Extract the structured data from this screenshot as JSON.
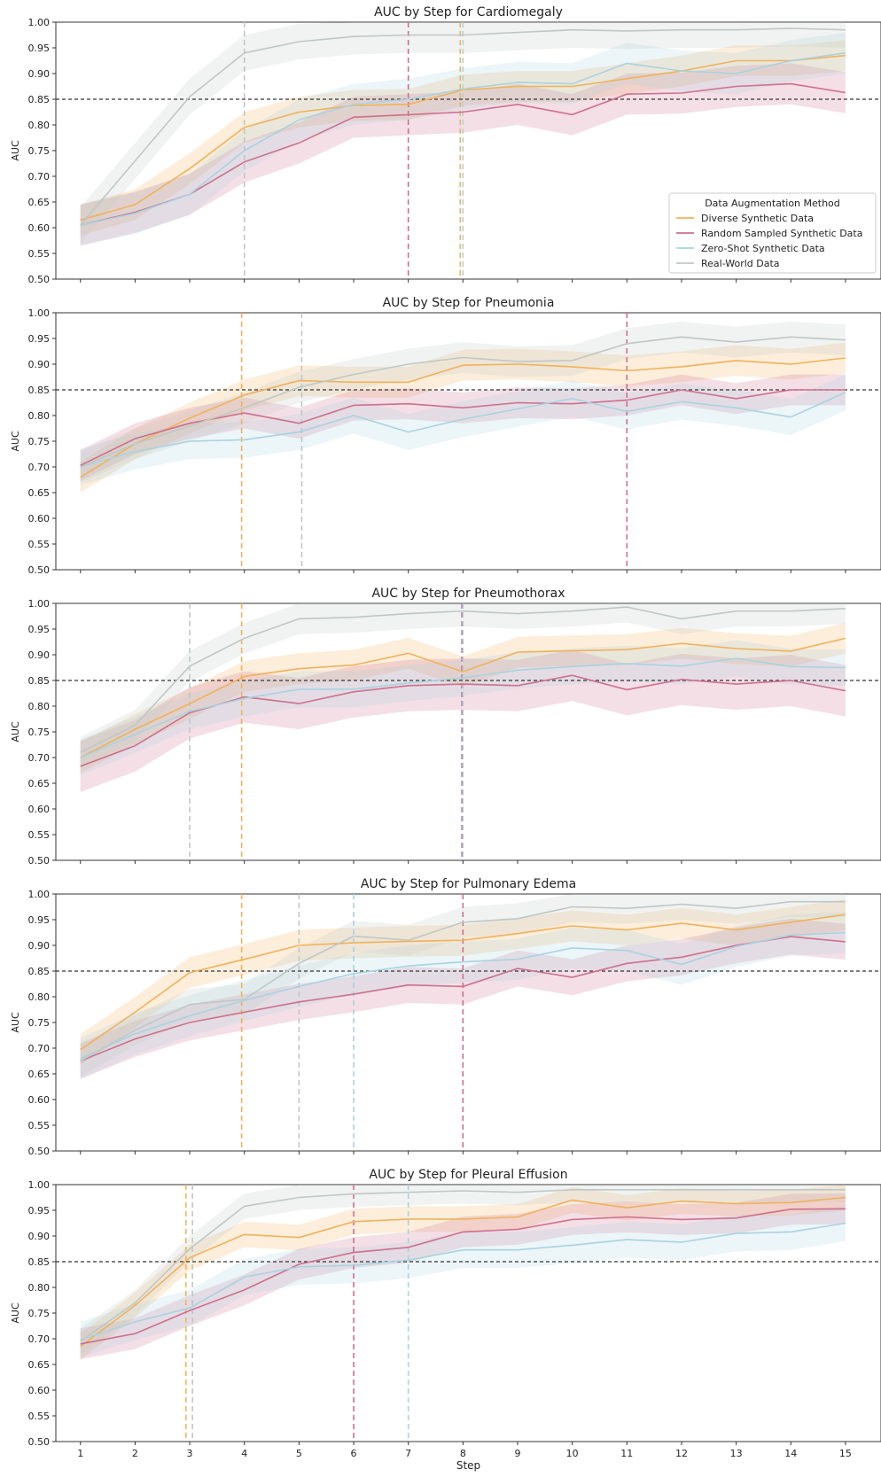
{
  "colors": {
    "diverse": "#f0b25a",
    "random": "#cf6f8c",
    "zeroshot": "#a9d3e0",
    "real": "#bfc8c6",
    "baseline": "#333333"
  },
  "legend": {
    "title": "Data Augmentation Method",
    "entries": [
      "Diverse Synthetic Data",
      "Random Sampled Synthetic Data",
      "Zero-Shot Synthetic Data",
      "Real-World Data"
    ]
  },
  "chart_data": [
    {
      "type": "line",
      "title": "AUC by Step for Cardiomegaly",
      "xlabel": "",
      "ylabel": "AUC",
      "x": [
        1,
        2,
        3,
        4,
        5,
        6,
        7,
        8,
        9,
        10,
        11,
        12,
        13,
        14,
        15
      ],
      "ylim": [
        0.5,
        1.0
      ],
      "yticks": [
        "0.50",
        "0.55",
        "0.60",
        "0.65",
        "0.70",
        "0.75",
        "0.80",
        "0.85",
        "0.90",
        "0.95",
        "1.00"
      ],
      "baseline": 0.85,
      "legend": "lower-right",
      "series": [
        {
          "name": "Diverse Synthetic Data",
          "key": "diverse",
          "values": [
            0.615,
            0.645,
            0.715,
            0.795,
            0.825,
            0.838,
            0.84,
            0.868,
            0.875,
            0.875,
            0.89,
            0.905,
            0.925,
            0.925,
            0.935
          ],
          "band": 0.03,
          "threshold": 7.95
        },
        {
          "name": "Random Sampled Synthetic Data",
          "key": "random",
          "values": [
            0.605,
            0.63,
            0.665,
            0.728,
            0.765,
            0.815,
            0.82,
            0.825,
            0.84,
            0.82,
            0.86,
            0.862,
            0.875,
            0.88,
            0.863
          ],
          "band": 0.04,
          "threshold": 7.0
        },
        {
          "name": "Zero-Shot Synthetic Data",
          "key": "zeroshot",
          "values": [
            0.605,
            0.628,
            0.665,
            0.75,
            0.81,
            0.84,
            0.85,
            0.87,
            0.883,
            0.88,
            0.92,
            0.905,
            0.9,
            0.925,
            0.94
          ],
          "band": 0.04,
          "threshold": 8.0
        },
        {
          "name": "Real-World Data",
          "key": "real",
          "values": [
            0.605,
            0.73,
            0.855,
            0.94,
            0.962,
            0.972,
            0.975,
            0.975,
            0.98,
            0.985,
            0.983,
            0.985,
            0.985,
            0.988,
            0.985
          ],
          "band": 0.035,
          "threshold": 4.0
        }
      ]
    },
    {
      "type": "line",
      "title": "AUC by Step for Pneumonia",
      "xlabel": "",
      "ylabel": "AUC",
      "x": [
        1,
        2,
        3,
        4,
        5,
        6,
        7,
        8,
        9,
        10,
        11,
        12,
        13,
        14,
        15
      ],
      "ylim": [
        0.5,
        1.0
      ],
      "yticks": [
        "0.50",
        "0.55",
        "0.60",
        "0.65",
        "0.70",
        "0.75",
        "0.80",
        "0.85",
        "0.90",
        "0.95",
        "1.00"
      ],
      "baseline": 0.85,
      "series": [
        {
          "name": "Diverse Synthetic Data",
          "key": "diverse",
          "values": [
            0.68,
            0.745,
            0.795,
            0.84,
            0.868,
            0.865,
            0.865,
            0.898,
            0.9,
            0.895,
            0.887,
            0.895,
            0.907,
            0.9,
            0.912
          ],
          "band": 0.03,
          "threshold": 3.95
        },
        {
          "name": "Random Sampled Synthetic Data",
          "key": "random",
          "values": [
            0.703,
            0.755,
            0.785,
            0.805,
            0.785,
            0.82,
            0.823,
            0.815,
            0.825,
            0.823,
            0.83,
            0.85,
            0.833,
            0.85,
            0.85
          ],
          "band": 0.03,
          "threshold": 11.0
        },
        {
          "name": "Zero-Shot Synthetic Data",
          "key": "zeroshot",
          "values": [
            0.7,
            0.73,
            0.75,
            0.753,
            0.768,
            0.8,
            0.768,
            0.793,
            0.813,
            0.833,
            0.808,
            0.827,
            0.815,
            0.797,
            0.845
          ],
          "band": 0.035,
          "threshold": null
        },
        {
          "name": "Real-World Data",
          "key": "real",
          "values": [
            0.7,
            0.745,
            0.78,
            0.815,
            0.855,
            0.88,
            0.9,
            0.913,
            0.905,
            0.907,
            0.94,
            0.953,
            0.943,
            0.953,
            0.947
          ],
          "band": 0.03,
          "threshold": 5.05
        }
      ]
    },
    {
      "type": "line",
      "title": "AUC by Step for Pneumothorax",
      "xlabel": "",
      "ylabel": "AUC",
      "x": [
        1,
        2,
        3,
        4,
        5,
        6,
        7,
        8,
        9,
        10,
        11,
        12,
        13,
        14,
        15
      ],
      "ylim": [
        0.5,
        1.0
      ],
      "yticks": [
        "0.50",
        "0.55",
        "0.60",
        "0.65",
        "0.70",
        "0.75",
        "0.80",
        "0.85",
        "0.90",
        "0.95",
        "1.00"
      ],
      "baseline": 0.85,
      "series": [
        {
          "name": "Diverse Synthetic Data",
          "key": "diverse",
          "values": [
            0.7,
            0.755,
            0.805,
            0.858,
            0.873,
            0.88,
            0.903,
            0.867,
            0.905,
            0.908,
            0.91,
            0.922,
            0.912,
            0.907,
            0.932
          ],
          "band": 0.03,
          "threshold": 3.95
        },
        {
          "name": "Random Sampled Synthetic Data",
          "key": "random",
          "values": [
            0.683,
            0.723,
            0.787,
            0.818,
            0.805,
            0.828,
            0.84,
            0.843,
            0.84,
            0.86,
            0.832,
            0.852,
            0.843,
            0.85,
            0.83
          ],
          "band": 0.05,
          "threshold": 7.98
        },
        {
          "name": "Zero-Shot Synthetic Data",
          "key": "zeroshot",
          "values": [
            0.7,
            0.745,
            0.79,
            0.815,
            0.833,
            0.833,
            0.845,
            0.855,
            0.87,
            0.877,
            0.883,
            0.878,
            0.893,
            0.877,
            0.875
          ],
          "band": 0.035,
          "threshold": 8.0
        },
        {
          "name": "Real-World Data",
          "key": "real",
          "values": [
            0.71,
            0.763,
            0.878,
            0.932,
            0.97,
            0.973,
            0.98,
            0.985,
            0.98,
            0.985,
            0.993,
            0.97,
            0.985,
            0.985,
            0.99
          ],
          "band": 0.03,
          "threshold": 3.0
        }
      ]
    },
    {
      "type": "line",
      "title": "AUC by Step for Pulmonary Edema",
      "xlabel": "",
      "ylabel": "AUC",
      "x": [
        1,
        2,
        3,
        4,
        5,
        6,
        7,
        8,
        9,
        10,
        11,
        12,
        13,
        14,
        15
      ],
      "ylim": [
        0.5,
        1.0
      ],
      "yticks": [
        "0.50",
        "0.55",
        "0.60",
        "0.65",
        "0.70",
        "0.75",
        "0.80",
        "0.85",
        "0.90",
        "0.95",
        "1.00"
      ],
      "baseline": 0.85,
      "series": [
        {
          "name": "Diverse Synthetic Data",
          "key": "diverse",
          "values": [
            0.697,
            0.77,
            0.847,
            0.873,
            0.9,
            0.905,
            0.908,
            0.91,
            0.923,
            0.938,
            0.93,
            0.943,
            0.93,
            0.945,
            0.96
          ],
          "band": 0.03,
          "threshold": 3.95
        },
        {
          "name": "Random Sampled Synthetic Data",
          "key": "random",
          "values": [
            0.675,
            0.718,
            0.75,
            0.77,
            0.79,
            0.805,
            0.823,
            0.82,
            0.855,
            0.838,
            0.865,
            0.877,
            0.9,
            0.917,
            0.907
          ],
          "band": 0.035,
          "threshold": 8.0
        },
        {
          "name": "Zero-Shot Synthetic Data",
          "key": "zeroshot",
          "values": [
            0.68,
            0.728,
            0.763,
            0.793,
            0.82,
            0.845,
            0.86,
            0.868,
            0.873,
            0.895,
            0.89,
            0.863,
            0.898,
            0.92,
            0.925
          ],
          "band": 0.04,
          "threshold": 6.0
        },
        {
          "name": "Real-World Data",
          "key": "real",
          "values": [
            0.675,
            0.735,
            0.785,
            0.795,
            0.865,
            0.918,
            0.91,
            0.945,
            0.952,
            0.975,
            0.972,
            0.98,
            0.972,
            0.985,
            0.985
          ],
          "band": 0.03,
          "threshold": 5.0
        }
      ]
    },
    {
      "type": "line",
      "title": "AUC by Step for Pleural Effusion",
      "xlabel": "Step",
      "ylabel": "AUC",
      "x": [
        1,
        2,
        3,
        4,
        5,
        6,
        7,
        8,
        9,
        10,
        11,
        12,
        13,
        14,
        15
      ],
      "xticks": [
        "1",
        "2",
        "3",
        "4",
        "5",
        "6",
        "7",
        "8",
        "9",
        "10",
        "11",
        "12",
        "13",
        "14",
        "15"
      ],
      "ylim": [
        0.5,
        1.0
      ],
      "yticks": [
        "0.50",
        "0.55",
        "0.60",
        "0.65",
        "0.70",
        "0.75",
        "0.80",
        "0.85",
        "0.90",
        "0.95",
        "1.00"
      ],
      "baseline": 0.85,
      "series": [
        {
          "name": "Diverse Synthetic Data",
          "key": "diverse",
          "values": [
            0.685,
            0.765,
            0.858,
            0.903,
            0.897,
            0.928,
            0.933,
            0.933,
            0.937,
            0.97,
            0.955,
            0.968,
            0.963,
            0.965,
            0.975
          ],
          "band": 0.025,
          "threshold": 2.93
        },
        {
          "name": "Random Sampled Synthetic Data",
          "key": "random",
          "values": [
            0.69,
            0.71,
            0.755,
            0.795,
            0.845,
            0.868,
            0.878,
            0.908,
            0.913,
            0.932,
            0.937,
            0.932,
            0.935,
            0.952,
            0.953
          ],
          "band": 0.03,
          "threshold": 6.0
        },
        {
          "name": "Zero-Shot Synthetic Data",
          "key": "zeroshot",
          "values": [
            0.698,
            0.733,
            0.76,
            0.82,
            0.84,
            0.843,
            0.853,
            0.873,
            0.873,
            0.882,
            0.893,
            0.888,
            0.905,
            0.908,
            0.925
          ],
          "band": 0.035,
          "threshold": 7.0
        },
        {
          "name": "Real-World Data",
          "key": "real",
          "values": [
            0.695,
            0.77,
            0.875,
            0.958,
            0.975,
            0.982,
            0.985,
            0.988,
            0.985,
            0.99,
            0.99,
            0.99,
            0.99,
            0.99,
            0.99
          ],
          "band": 0.025,
          "threshold": 3.05
        }
      ]
    }
  ]
}
